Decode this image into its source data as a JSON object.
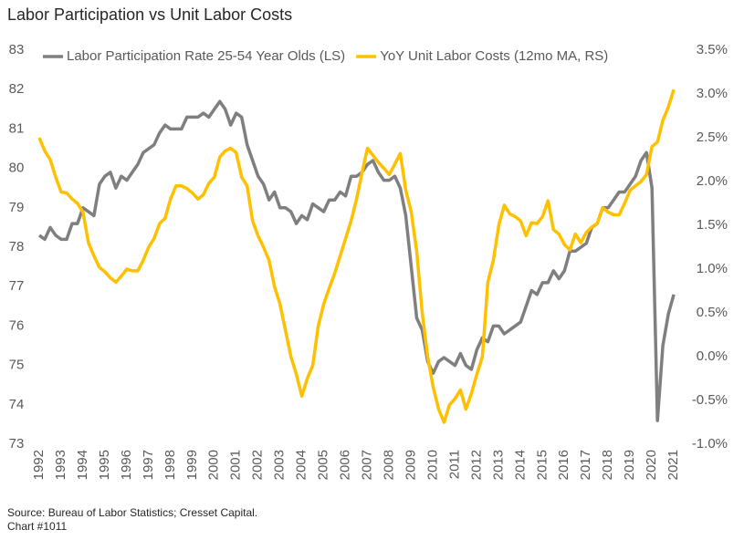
{
  "chart_data": {
    "type": "line",
    "title": "Labor Participation vs Unit Labor Costs",
    "source": "Source: Bureau of Labor Statistics; Cresset Capital.",
    "note": "Chart #1011",
    "legend": "top",
    "xlim": [
      1992,
      2021.1
    ],
    "xticks": [
      1992,
      1993,
      1994,
      1995,
      1996,
      1997,
      1998,
      1999,
      2000,
      2001,
      2002,
      2003,
      2004,
      2005,
      2006,
      2007,
      2008,
      2009,
      2010,
      2011,
      2012,
      2013,
      2014,
      2015,
      2016,
      2017,
      2018,
      2019,
      2020,
      2021
    ],
    "ylim": [
      73,
      83
    ],
    "yticks": [
      73,
      74,
      75,
      76,
      77,
      78,
      79,
      80,
      81,
      82,
      83
    ],
    "y2lim": [
      -1.0,
      3.5
    ],
    "y2ticks": [
      {
        "value": -1.0,
        "label": "-1.0%"
      },
      {
        "value": -0.5,
        "label": "-0.5%"
      },
      {
        "value": 0.0,
        "label": "0.0%"
      },
      {
        "value": 0.5,
        "label": "0.5%"
      },
      {
        "value": 1.0,
        "label": "1.0%"
      },
      {
        "value": 1.5,
        "label": "1.5%"
      },
      {
        "value": 2.0,
        "label": "2.0%"
      },
      {
        "value": 2.5,
        "label": "2.5%"
      },
      {
        "value": 3.0,
        "label": "3.0%"
      },
      {
        "value": 3.5,
        "label": "3.5%"
      }
    ],
    "x": [
      1992,
      1992.25,
      1992.5,
      1992.75,
      1993,
      1993.25,
      1993.5,
      1993.75,
      1994,
      1994.25,
      1994.5,
      1994.75,
      1995,
      1995.25,
      1995.5,
      1995.75,
      1996,
      1996.25,
      1996.5,
      1996.75,
      1997,
      1997.25,
      1997.5,
      1997.75,
      1998,
      1998.25,
      1998.5,
      1998.75,
      1999,
      1999.25,
      1999.5,
      1999.75,
      2000,
      2000.25,
      2000.5,
      2000.75,
      2001,
      2001.25,
      2001.5,
      2001.75,
      2002,
      2002.25,
      2002.5,
      2002.75,
      2003,
      2003.25,
      2003.5,
      2003.75,
      2004,
      2004.25,
      2004.5,
      2004.75,
      2005,
      2005.25,
      2005.5,
      2005.75,
      2006,
      2006.25,
      2006.5,
      2006.75,
      2007,
      2007.25,
      2007.5,
      2007.75,
      2008,
      2008.25,
      2008.5,
      2008.75,
      2009,
      2009.25,
      2009.5,
      2009.75,
      2010,
      2010.25,
      2010.5,
      2010.75,
      2011,
      2011.25,
      2011.5,
      2011.75,
      2012,
      2012.25,
      2012.5,
      2012.75,
      2013,
      2013.25,
      2013.5,
      2013.75,
      2014,
      2014.25,
      2014.5,
      2014.75,
      2015,
      2015.25,
      2015.5,
      2015.75,
      2016,
      2016.25,
      2016.5,
      2016.75,
      2017,
      2017.25,
      2017.5,
      2017.75,
      2018,
      2018.25,
      2018.5,
      2018.75,
      2019,
      2019.25,
      2019.5,
      2019.75,
      2020,
      2020.25,
      2020.5,
      2020.75,
      2021
    ],
    "series": [
      {
        "name": "Labor Participation Rate 25-54 Year Olds (LS)",
        "color": "#7f7f7f",
        "axis": "y",
        "values": [
          78.3,
          78.2,
          78.5,
          78.3,
          78.2,
          78.2,
          78.6,
          78.6,
          79.0,
          78.9,
          78.8,
          79.6,
          79.8,
          79.9,
          79.5,
          79.8,
          79.7,
          79.9,
          80.1,
          80.4,
          80.5,
          80.6,
          80.9,
          81.1,
          81.0,
          81.0,
          81.0,
          81.3,
          81.3,
          81.3,
          81.4,
          81.3,
          81.5,
          81.7,
          81.5,
          81.1,
          81.4,
          81.3,
          80.6,
          80.2,
          79.8,
          79.6,
          79.2,
          79.4,
          79.0,
          79.0,
          78.9,
          78.6,
          78.8,
          78.7,
          79.1,
          79.0,
          78.9,
          79.2,
          79.2,
          79.4,
          79.3,
          79.8,
          79.8,
          79.9,
          80.1,
          80.2,
          79.9,
          79.7,
          79.7,
          79.8,
          79.5,
          78.8,
          77.5,
          76.2,
          75.9,
          75.1,
          74.8,
          75.1,
          75.2,
          75.1,
          75.0,
          75.3,
          75.0,
          74.9,
          75.4,
          75.7,
          75.6,
          76.0,
          76.0,
          75.8,
          75.9,
          76.0,
          76.1,
          76.5,
          76.9,
          76.8,
          77.1,
          77.1,
          77.4,
          77.2,
          77.4,
          77.9,
          77.9,
          78.0,
          78.1,
          78.5,
          78.6,
          79.0,
          79.0,
          79.2,
          79.4,
          79.4,
          79.6,
          79.8,
          80.2,
          80.4,
          79.5,
          73.6,
          75.5,
          76.3,
          76.8
        ]
      },
      {
        "name": "YoY Unit Labor Costs (12mo MA, RS)",
        "color": "#ffc000",
        "axis": "y2",
        "values": [
          2.5,
          2.35,
          2.25,
          2.05,
          1.88,
          1.87,
          1.8,
          1.75,
          1.65,
          1.3,
          1.15,
          1.02,
          0.97,
          0.9,
          0.85,
          0.92,
          1.0,
          0.98,
          0.98,
          1.1,
          1.25,
          1.35,
          1.52,
          1.58,
          1.8,
          1.95,
          1.95,
          1.92,
          1.87,
          1.8,
          1.85,
          1.98,
          2.05,
          2.28,
          2.35,
          2.38,
          2.33,
          2.05,
          1.95,
          1.55,
          1.38,
          1.25,
          1.1,
          0.8,
          0.6,
          0.3,
          0.0,
          -0.2,
          -0.45,
          -0.25,
          -0.1,
          0.35,
          0.6,
          0.78,
          0.95,
          1.15,
          1.35,
          1.55,
          1.8,
          2.1,
          2.38,
          2.3,
          2.22,
          2.15,
          2.08,
          2.2,
          2.32,
          1.9,
          1.65,
          1.2,
          0.5,
          0.0,
          -0.35,
          -0.6,
          -0.75,
          -0.55,
          -0.48,
          -0.38,
          -0.6,
          -0.42,
          -0.2,
          0.0,
          0.85,
          1.1,
          1.5,
          1.73,
          1.63,
          1.6,
          1.55,
          1.38,
          1.53,
          1.52,
          1.6,
          1.78,
          1.45,
          1.4,
          1.28,
          1.22,
          1.4,
          1.3,
          1.42,
          1.48,
          1.52,
          1.7,
          1.65,
          1.62,
          1.62,
          1.75,
          1.9,
          1.95,
          2.0,
          2.08,
          2.4,
          2.45,
          2.7,
          2.85,
          3.05
        ]
      }
    ]
  }
}
